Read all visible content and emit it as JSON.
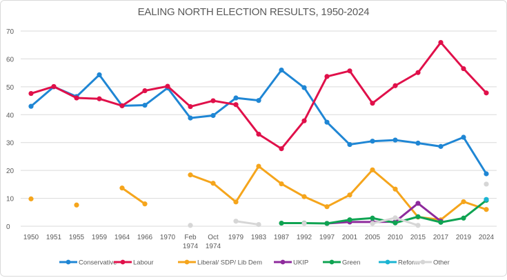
{
  "chart_data": {
    "type": "line",
    "title": "EALING NORTH ELECTION RESULTS, 1950-2024",
    "xlabel": "",
    "ylabel": "",
    "ylim": [
      0,
      70
    ],
    "yticks": [
      "0",
      "10",
      "20",
      "30",
      "40",
      "50",
      "60",
      "70"
    ],
    "grid": true,
    "legend_position": "bottom",
    "categories": [
      "1950",
      "1951",
      "1955",
      "1959",
      "1964",
      "1966",
      "1970",
      "Feb 1974",
      "Oct 1974",
      "1979",
      "1983",
      "1987",
      "1992",
      "1997",
      "2001",
      "2005",
      "2010",
      "2015",
      "2017",
      "2019",
      "2024"
    ],
    "series": [
      {
        "name": "Conservative",
        "color": "#1f86d4",
        "values": [
          43,
          50,
          46.5,
          54.3,
          43.2,
          43.4,
          49.6,
          38.8,
          39.7,
          46,
          45.1,
          56,
          49.7,
          37.3,
          29.3,
          30.5,
          30.9,
          29.8,
          28.6,
          31.9,
          18.8
        ]
      },
      {
        "name": "Labour",
        "color": "#e0104a",
        "values": [
          47.6,
          50.1,
          46,
          45.7,
          43.2,
          48.6,
          50.2,
          42.9,
          45,
          43.6,
          33,
          27.8,
          37.8,
          53.7,
          55.7,
          44.1,
          50.4,
          55.1,
          65.9,
          56.5,
          47.8
        ]
      },
      {
        "name": "Liberal/ SDP/ Lib Dem",
        "color": "#f5a51c",
        "values": [
          9.8,
          null,
          7.6,
          null,
          13.7,
          8,
          null,
          18.4,
          15.4,
          8.7,
          21.5,
          15.2,
          10.6,
          7,
          11.2,
          20.2,
          13.3,
          3.3,
          2.3,
          8.8,
          6
        ]
      },
      {
        "name": "UKIP",
        "color": "#8e2a9c",
        "values": [
          null,
          null,
          null,
          null,
          null,
          null,
          null,
          null,
          null,
          null,
          null,
          null,
          null,
          1,
          1.5,
          1.5,
          1.6,
          8.2,
          1.8,
          null,
          null
        ]
      },
      {
        "name": "Green",
        "color": "#0fa352",
        "values": [
          null,
          null,
          null,
          null,
          null,
          null,
          null,
          null,
          null,
          null,
          null,
          1.1,
          1.1,
          1,
          2.3,
          2.9,
          1.2,
          3.4,
          1.4,
          2.9,
          9.3
        ]
      },
      {
        "name": "Reform",
        "color": "#1ab4d2",
        "values": [
          null,
          null,
          null,
          null,
          null,
          null,
          null,
          null,
          null,
          null,
          null,
          null,
          null,
          null,
          null,
          null,
          null,
          null,
          null,
          null,
          9.6
        ]
      },
      {
        "name": "Other",
        "color": "#d6d6d6",
        "values": [
          null,
          null,
          null,
          null,
          null,
          null,
          null,
          0.3,
          null,
          1.8,
          0.6,
          null,
          1,
          null,
          null,
          1,
          3,
          0.3,
          null,
          null,
          15.1
        ]
      }
    ]
  }
}
